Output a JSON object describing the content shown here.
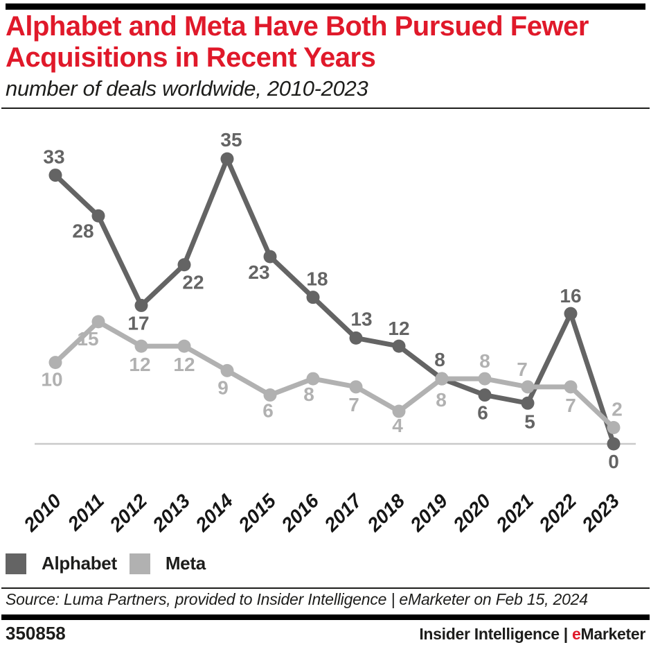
{
  "header": {
    "title_line1": "Alphabet and Meta Have Both Pursued Fewer",
    "title_line2": "Acquisitions in Recent Years",
    "subtitle": "number of deals worldwide, 2010-2023"
  },
  "colors": {
    "title_red": "#e0192a",
    "brand_accent_red": "#e0192a",
    "text_dark": "#1d1d1b",
    "axis_line": "#c9c9c9",
    "year_label": "#161616"
  },
  "chart_data": {
    "type": "line",
    "title": "Alphabet and Meta Have Both Pursued Fewer Acquisitions in Recent Years",
    "subtitle": "number of deals worldwide, 2010-2023",
    "xlabel": "",
    "ylabel": "number of deals",
    "ylim": [
      0,
      35
    ],
    "grid": false,
    "legend_position": "bottom-left",
    "categories": [
      "2010",
      "2011",
      "2012",
      "2013",
      "2014",
      "2015",
      "2016",
      "2017",
      "2018",
      "2019",
      "2020",
      "2021",
      "2022",
      "2023"
    ],
    "series": [
      {
        "name": "Alphabet",
        "color": "#646464",
        "values": [
          33,
          28,
          17,
          22,
          35,
          23,
          18,
          13,
          12,
          8,
          6,
          5,
          16,
          0
        ],
        "label_offsets": [
          [
            -2,
            -26
          ],
          [
            -22,
            22
          ],
          [
            -4,
            26
          ],
          [
            13,
            26
          ],
          [
            6,
            -27
          ],
          [
            -16,
            23
          ],
          [
            6,
            -26
          ],
          [
            8,
            -27
          ],
          [
            0,
            -25
          ],
          [
            -3,
            -27
          ],
          [
            -3,
            26
          ],
          [
            3,
            27
          ],
          [
            0,
            -25
          ],
          [
            0,
            26
          ]
        ]
      },
      {
        "name": "Meta",
        "color": "#b1b1b1",
        "values": [
          10,
          15,
          12,
          12,
          9,
          6,
          8,
          7,
          4,
          8,
          8,
          7,
          7,
          2
        ],
        "label_offsets": [
          [
            -5,
            25
          ],
          [
            -15,
            25
          ],
          [
            -2,
            27
          ],
          [
            0,
            27
          ],
          [
            -6,
            25
          ],
          [
            -3,
            23
          ],
          [
            -6,
            23
          ],
          [
            -3,
            26
          ],
          [
            -2,
            21
          ],
          [
            -1,
            31
          ],
          [
            0,
            -25
          ],
          [
            -8,
            -25
          ],
          [
            0,
            27
          ],
          [
            5,
            -26
          ]
        ]
      }
    ]
  },
  "legend": {
    "items": [
      {
        "label": "Alphabet",
        "color": "#646464"
      },
      {
        "label": "Meta",
        "color": "#b1b1b1"
      }
    ]
  },
  "source": {
    "text": "Source: Luma Partners, provided to Insider Intelligence | eMarketer on Feb 15, 2024"
  },
  "footer": {
    "chart_id": "350858",
    "brand_prefix": "Insider Intelligence | ",
    "brand_accent": "e",
    "brand_rest": "Marketer"
  }
}
